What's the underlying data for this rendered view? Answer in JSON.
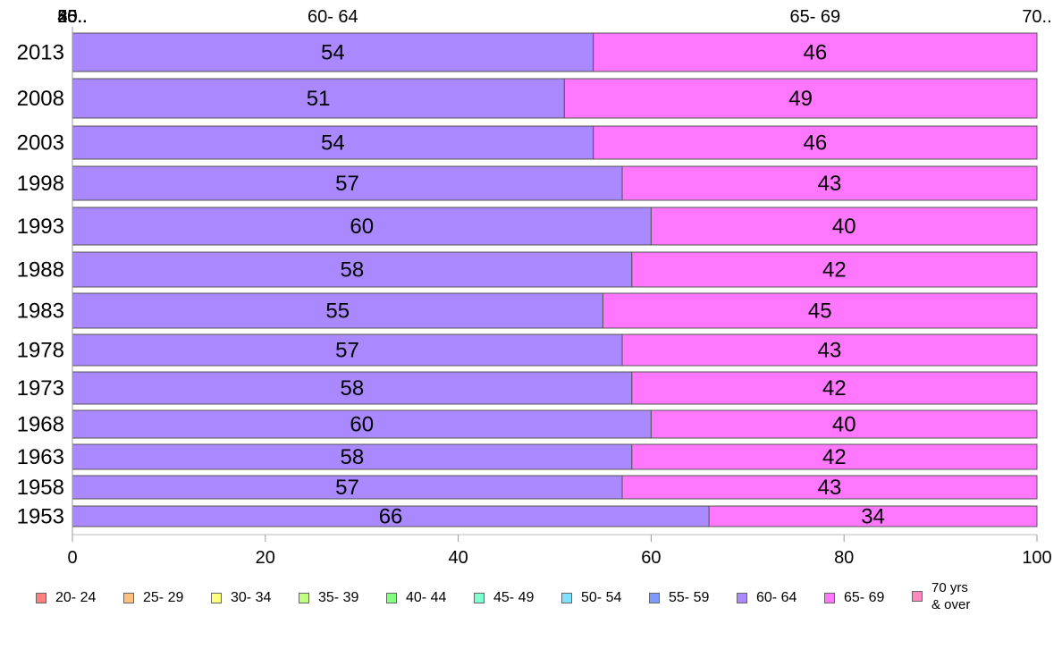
{
  "chart_data": {
    "type": "bar",
    "orientation": "horizontal",
    "stacked": true,
    "categories": [
      "2013",
      "2008",
      "2003",
      "1998",
      "1993",
      "1988",
      "1983",
      "1978",
      "1973",
      "1968",
      "1963",
      "1958",
      "1953"
    ],
    "series": [
      {
        "name": "20- 24",
        "color": "#ff8080",
        "values": [
          0,
          0,
          0,
          0,
          0,
          0,
          0,
          0,
          0,
          0,
          0,
          0,
          0
        ]
      },
      {
        "name": "25- 29",
        "color": "#ffc080",
        "values": [
          0,
          0,
          0,
          0,
          0,
          0,
          0,
          0,
          0,
          0,
          0,
          0,
          0
        ]
      },
      {
        "name": "30- 34",
        "color": "#ffff80",
        "values": [
          0,
          0,
          0,
          0,
          0,
          0,
          0,
          0,
          0,
          0,
          0,
          0,
          0
        ]
      },
      {
        "name": "35- 39",
        "color": "#c0ff80",
        "values": [
          0,
          0,
          0,
          0,
          0,
          0,
          0,
          0,
          0,
          0,
          0,
          0,
          0
        ]
      },
      {
        "name": "40- 44",
        "color": "#80ff80",
        "values": [
          0,
          0,
          0,
          0,
          0,
          0,
          0,
          0,
          0,
          0,
          0,
          0,
          0
        ]
      },
      {
        "name": "45- 49",
        "color": "#80ffd0",
        "values": [
          0,
          0,
          0,
          0,
          0,
          0,
          0,
          0,
          0,
          0,
          0,
          0,
          0
        ]
      },
      {
        "name": "50- 54",
        "color": "#80e0ff",
        "values": [
          0,
          0,
          0,
          0,
          0,
          0,
          0,
          0,
          0,
          0,
          0,
          0,
          0
        ]
      },
      {
        "name": "55- 59",
        "color": "#8099ff",
        "values": [
          0,
          0,
          0,
          0,
          0,
          0,
          0,
          0,
          0,
          0,
          0,
          0,
          0
        ]
      },
      {
        "name": "60- 64",
        "color": "#aa88ff",
        "values": [
          54,
          51,
          54,
          57,
          60,
          58,
          55,
          57,
          58,
          60,
          58,
          57,
          66
        ]
      },
      {
        "name": "65- 69",
        "color": "#ff77ff",
        "values": [
          46,
          49,
          46,
          43,
          40,
          42,
          45,
          43,
          42,
          40,
          42,
          43,
          34
        ]
      },
      {
        "name": "70 yrs\n& over",
        "color": "#ff88c0",
        "values": [
          0,
          0,
          0,
          0,
          0,
          0,
          0,
          0,
          0,
          0,
          0,
          0,
          0
        ]
      }
    ],
    "top_labels": [
      "20..",
      "25..",
      "30..",
      "35..",
      "40..",
      "45..",
      "50..",
      "55..",
      "60- 64",
      "65- 69",
      "70.."
    ],
    "xlim": [
      0,
      100
    ],
    "xticks": [
      0,
      20,
      40,
      60,
      80,
      100
    ],
    "grid": false,
    "legend_position": "bottom"
  }
}
